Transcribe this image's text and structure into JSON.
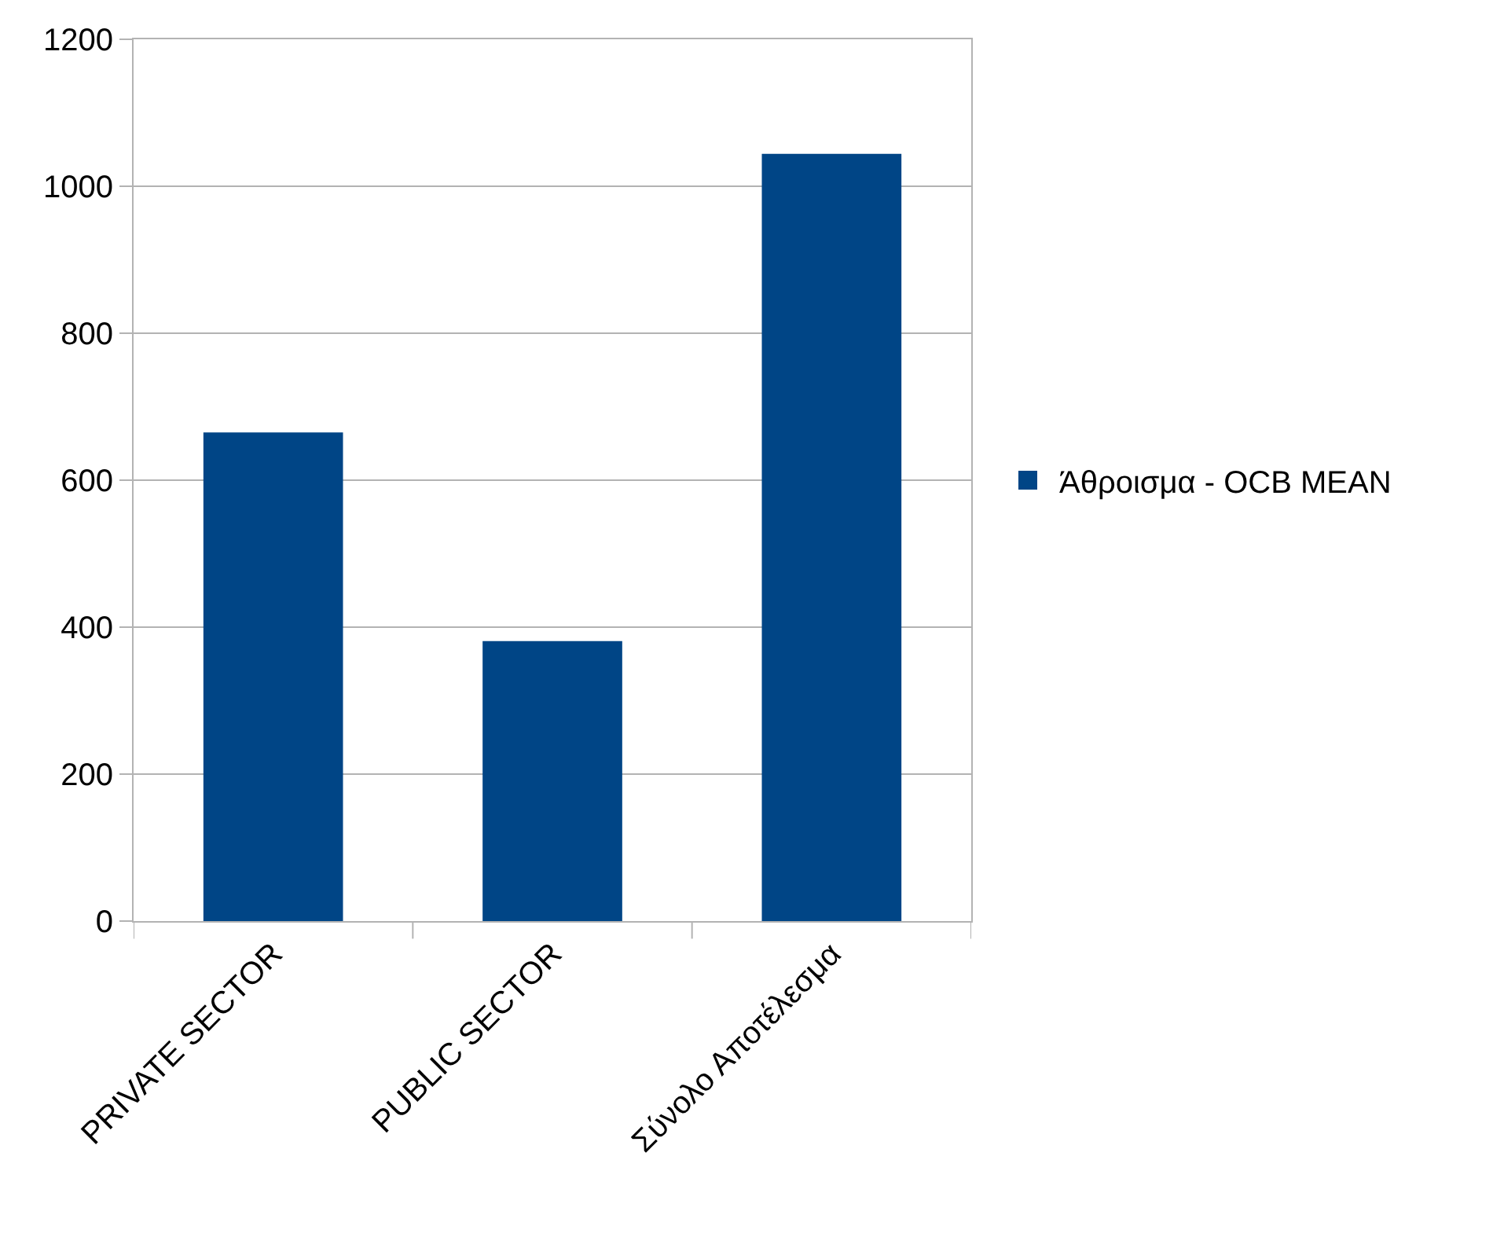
{
  "chart_data": {
    "type": "bar",
    "categories": [
      "PRIVATE SECTOR",
      "PUBLIC SECTOR",
      "Σύνολο Αποτέλεσμα"
    ],
    "series": [
      {
        "name": "Άθροισμα - OCB MEAN",
        "color": "#004586",
        "values": [
          665,
          381,
          1044
        ]
      }
    ],
    "ylim": [
      0,
      1200
    ],
    "yticks": [
      0,
      200,
      400,
      600,
      800,
      1000,
      1200
    ],
    "grid": "y",
    "legend": "right"
  }
}
